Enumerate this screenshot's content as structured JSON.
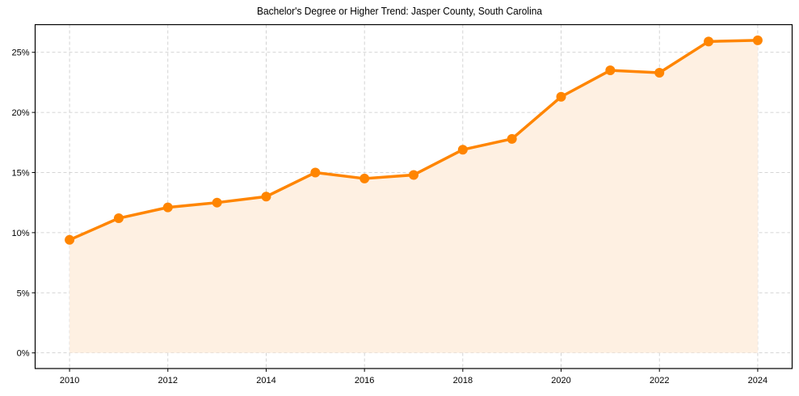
{
  "chart_data": {
    "type": "line",
    "title": "Bachelor's Degree or Higher Trend: Jasper County, South Carolina",
    "xlabel": "",
    "ylabel": "",
    "x": [
      2010,
      2011,
      2012,
      2013,
      2014,
      2015,
      2016,
      2017,
      2018,
      2019,
      2020,
      2021,
      2022,
      2023,
      2024
    ],
    "series": [
      {
        "name": "Bachelor's Degree or Higher (%)",
        "values": [
          9.4,
          11.2,
          12.1,
          12.5,
          13.0,
          15.0,
          14.5,
          14.8,
          16.9,
          17.8,
          21.3,
          23.5,
          23.3,
          25.9,
          26.0
        ],
        "color": "#ff8500",
        "fill_color": "#fef0e2",
        "marker": "circle",
        "area_fill": true
      }
    ],
    "x_ticks": [
      2010,
      2012,
      2014,
      2016,
      2018,
      2020,
      2022,
      2024
    ],
    "x_tick_labels": [
      "2010",
      "2012",
      "2014",
      "2016",
      "2018",
      "2020",
      "2022",
      "2024"
    ],
    "y_ticks": [
      0,
      5,
      10,
      15,
      20,
      25
    ],
    "y_tick_labels": [
      "0%",
      "5%",
      "10%",
      "15%",
      "20%",
      "25%"
    ],
    "xlim": [
      2009.3,
      2024.7
    ],
    "ylim": [
      -1.3,
      27.3
    ],
    "grid": true,
    "legend": null
  }
}
